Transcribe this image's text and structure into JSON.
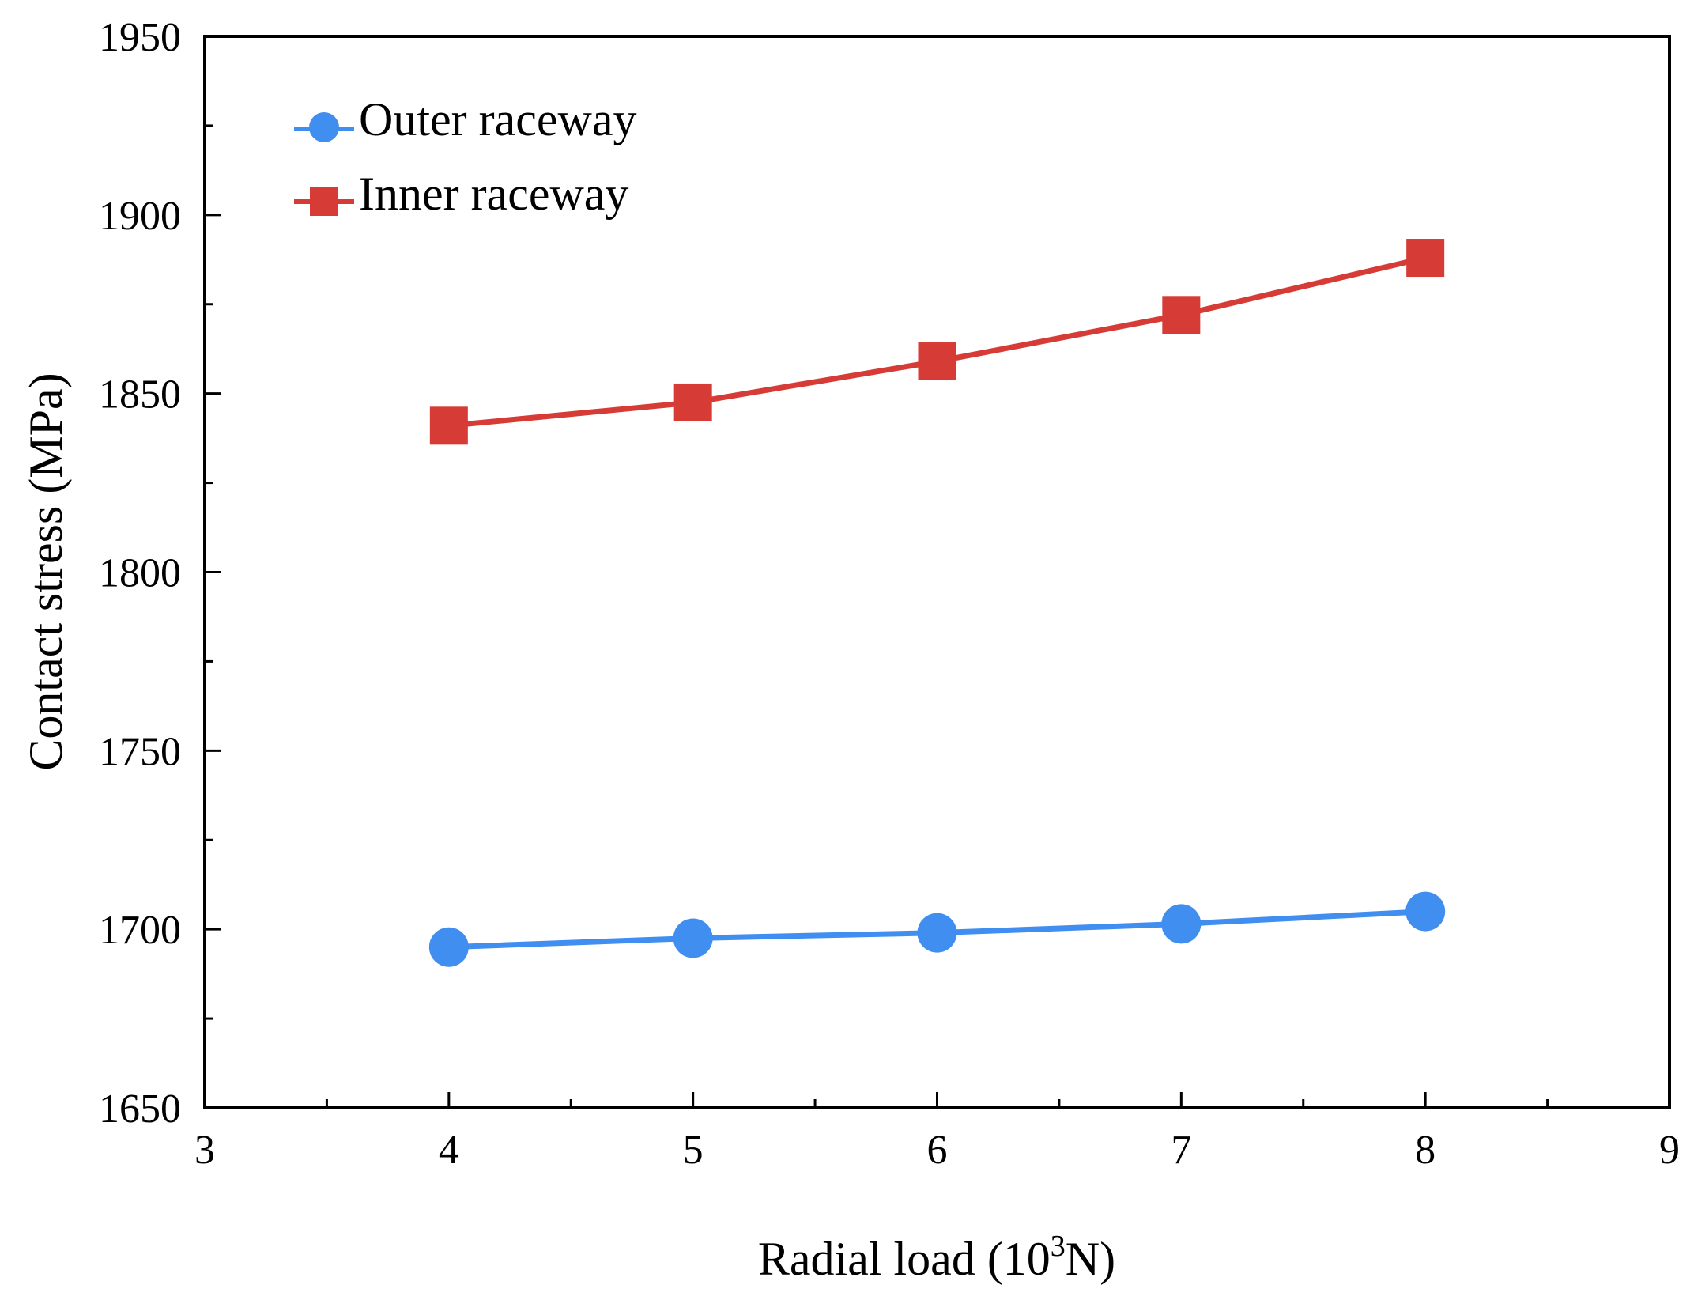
{
  "chart_data": {
    "type": "line",
    "title": "",
    "xlabel_main": "Radial load (10",
    "xlabel_sup": "3",
    "xlabel_tail": "N)",
    "ylabel": "Contact stress (MPa)",
    "xlim": [
      3,
      9
    ],
    "ylim": [
      1650,
      1950
    ],
    "xticks": [
      "3",
      "4",
      "5",
      "6",
      "7",
      "8",
      "9"
    ],
    "yticks": [
      "1650",
      "1700",
      "1750",
      "1800",
      "1850",
      "1900",
      "1950"
    ],
    "x": [
      4,
      5,
      6,
      7,
      8
    ],
    "series": [
      {
        "name": "Outer raceway",
        "marker": "circle",
        "color": "#3f8ef0",
        "values": [
          1695,
          1697.5,
          1699,
          1701.5,
          1705
        ]
      },
      {
        "name": "Inner raceway",
        "marker": "square",
        "color": "#d63b35",
        "values": [
          1841,
          1847.5,
          1859,
          1872,
          1888
        ]
      }
    ],
    "legend_position": "top-left",
    "grid": false
  }
}
